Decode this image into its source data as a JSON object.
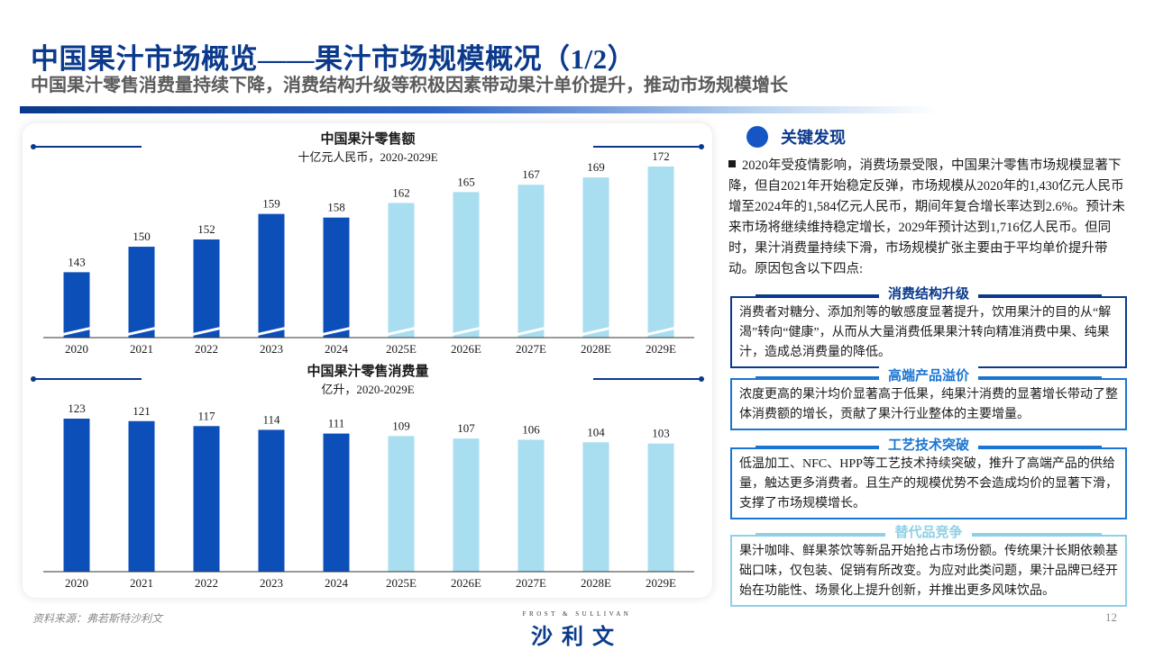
{
  "header": {
    "title": "中国果汁市场概览——果汁市场规模概况（1/2）",
    "subtitle": "中国果汁零售消费量持续下降，消费结构升级等积极因素带动果汁单价提升，推动市场规模增长"
  },
  "colors": {
    "actual": "#0d4fb8",
    "forecast": "#a8def0",
    "accent": "#0b3a8c"
  },
  "chart_data": [
    {
      "type": "bar",
      "title": "中国果汁零售额",
      "subtitle": "十亿元人民币，2020-2029E",
      "categories": [
        "2020",
        "2021",
        "2022",
        "2023",
        "2024",
        "2025E",
        "2026E",
        "2027E",
        "2028E",
        "2029E"
      ],
      "values": [
        143,
        150,
        152,
        159,
        158,
        162,
        165,
        167,
        169,
        172
      ],
      "axis_break": true,
      "forecast_from_index": 5
    },
    {
      "type": "bar",
      "title": "中国果汁零售消费量",
      "subtitle": "亿升，2020-2029E",
      "categories": [
        "2020",
        "2021",
        "2022",
        "2023",
        "2024",
        "2025E",
        "2026E",
        "2027E",
        "2028E",
        "2029E"
      ],
      "values": [
        123,
        121,
        117,
        114,
        111,
        109,
        107,
        106,
        104,
        103
      ],
      "axis_break": false,
      "forecast_from_index": 5
    }
  ],
  "findings": {
    "title": "关键发现",
    "main": "2020年受疫情影响，消费场景受限，中国果汁零售市场规模显著下降，但自2021年开始稳定反弹，市场规模从2020年的1,430亿元人民币增至2024年的1,584亿元人民币，期间年复合增长率达到2.6%。预计未来市场将继续维持稳定增长，2029年预计达到1,716亿人民币。但同时，果汁消费量持续下滑，市场规模扩张主要由于平均单价提升带动。原因包含以下四点:",
    "boxes": [
      {
        "title": "消费结构升级",
        "text": "消费者对糖分、添加剂等的敏感度显著提升，饮用果汁的目的从“解渴”转向“健康”，从而从大量消费低果果汁转向精准消费中果、纯果汁，造成总消费量的降低。"
      },
      {
        "title": "高端产品溢价",
        "text": "浓度更高的果汁均价显著高于低果，纯果汁消费的显著增长带动了整体消费额的增长，贡献了果汁行业整体的主要增量。"
      },
      {
        "title": "工艺技术突破",
        "text": "低温加工、NFC、HPP等工艺技术持续突破，推升了高端产品的供给量，触达更多消费者。且生产的规模优势不会造成均价的显著下滑，支撑了市场规模增长。"
      },
      {
        "title": "替代品竞争",
        "text": "果汁咖啡、鲜果茶饮等新品开始抢占市场份额。传统果汁长期依赖基础口味，仅包装、促销有所改变。为应对此类问题，果汁品牌已经开始在功能性、场景化上提升创新，并推出更多风味饮品。"
      }
    ]
  },
  "footer": {
    "source": "资料来源：弗若斯特沙利文",
    "logo_small": "FROST & SULLIVAN",
    "logo_main": "沙利文",
    "page": "12"
  }
}
